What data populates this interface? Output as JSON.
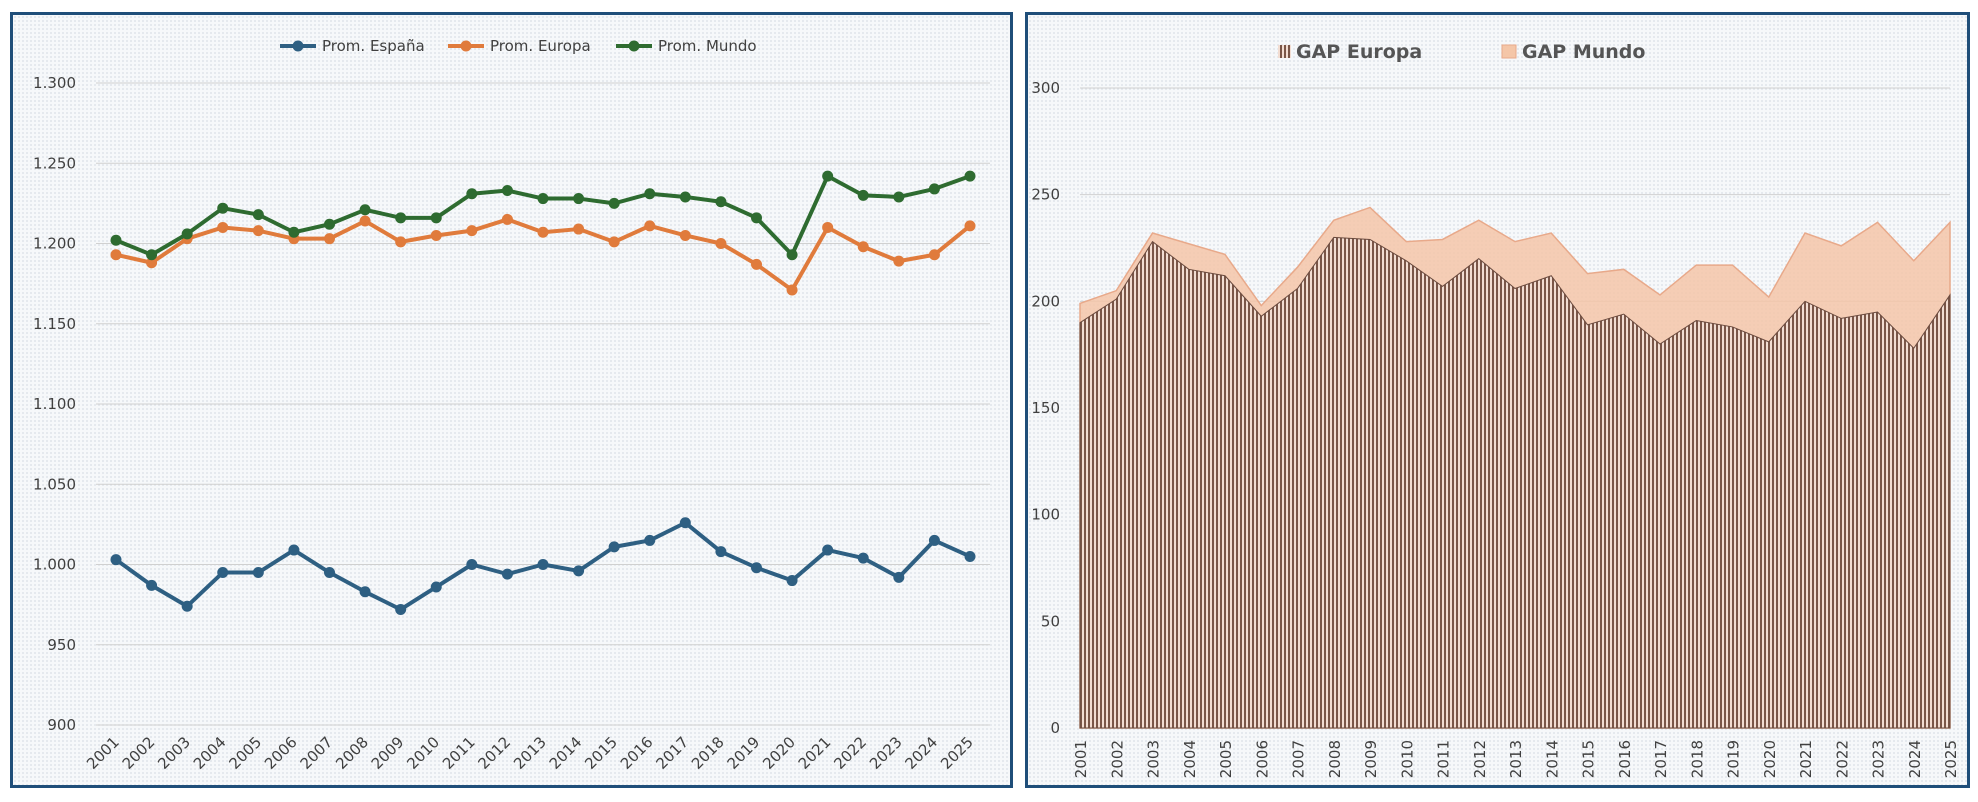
{
  "chart_data": [
    {
      "type": "line",
      "title": "",
      "xlabel": "",
      "ylabel": "",
      "categories": [
        "2001",
        "2002",
        "2003",
        "2004",
        "2005",
        "2006",
        "2007",
        "2008",
        "2009",
        "2010",
        "2011",
        "2012",
        "2013",
        "2014",
        "2015",
        "2016",
        "2017",
        "2018",
        "2019",
        "2020",
        "2021",
        "2022",
        "2023",
        "2024",
        "2025"
      ],
      "y_ticks": [
        "900",
        "950",
        "1.000",
        "1.050",
        "1.100",
        "1.150",
        "1.200",
        "1.250",
        "1.300"
      ],
      "ylim": [
        900,
        1300
      ],
      "legend_position": "top",
      "series": [
        {
          "name": "Prom. España",
          "color": "#2e5f82",
          "values": [
            1003,
            987,
            974,
            995,
            995,
            1009,
            995,
            983,
            972,
            986,
            1000,
            994,
            1000,
            996,
            1011,
            1015,
            1026,
            1008,
            998,
            990,
            1009,
            1004,
            992,
            1015,
            1005
          ]
        },
        {
          "name": "Prom. Europa",
          "color": "#e07b3c",
          "values": [
            1193,
            1188,
            1203,
            1210,
            1208,
            1203,
            1203,
            1214,
            1201,
            1205,
            1208,
            1215,
            1207,
            1209,
            1201,
            1211,
            1205,
            1200,
            1187,
            1171,
            1210,
            1198,
            1189,
            1193,
            1211
          ]
        },
        {
          "name": "Prom. Mundo",
          "color": "#2e6b30",
          "values": [
            1202,
            1193,
            1206,
            1222,
            1218,
            1207,
            1212,
            1221,
            1216,
            1216,
            1231,
            1233,
            1228,
            1228,
            1225,
            1231,
            1229,
            1226,
            1216,
            1193,
            1242,
            1230,
            1229,
            1234,
            1242
          ]
        }
      ]
    },
    {
      "type": "area",
      "title": "",
      "xlabel": "",
      "ylabel": "",
      "categories": [
        "2001",
        "2002",
        "2003",
        "2004",
        "2005",
        "2006",
        "2007",
        "2008",
        "2009",
        "2010",
        "2011",
        "2012",
        "2013",
        "2014",
        "2015",
        "2016",
        "2017",
        "2018",
        "2019",
        "2020",
        "2021",
        "2022",
        "2023",
        "2024",
        "2025"
      ],
      "y_ticks": [
        "0",
        "50",
        "100",
        "150",
        "200",
        "250",
        "300"
      ],
      "ylim": [
        0,
        300
      ],
      "legend_position": "top",
      "series": [
        {
          "name": "GAP Europa",
          "color": "#7a5648",
          "pattern": "vertical-stripes",
          "values": [
            190,
            201,
            228,
            215,
            212,
            193,
            206,
            230,
            229,
            219,
            207,
            220,
            206,
            212,
            189,
            194,
            180,
            191,
            188,
            181,
            200,
            192,
            195,
            178,
            203
          ]
        },
        {
          "name": "GAP Mundo",
          "color": "#f4c6a8",
          "values": [
            199,
            205,
            232,
            227,
            222,
            198,
            216,
            238,
            244,
            228,
            229,
            238,
            228,
            232,
            213,
            215,
            203,
            217,
            217,
            202,
            232,
            226,
            237,
            219,
            237
          ]
        }
      ]
    }
  ]
}
